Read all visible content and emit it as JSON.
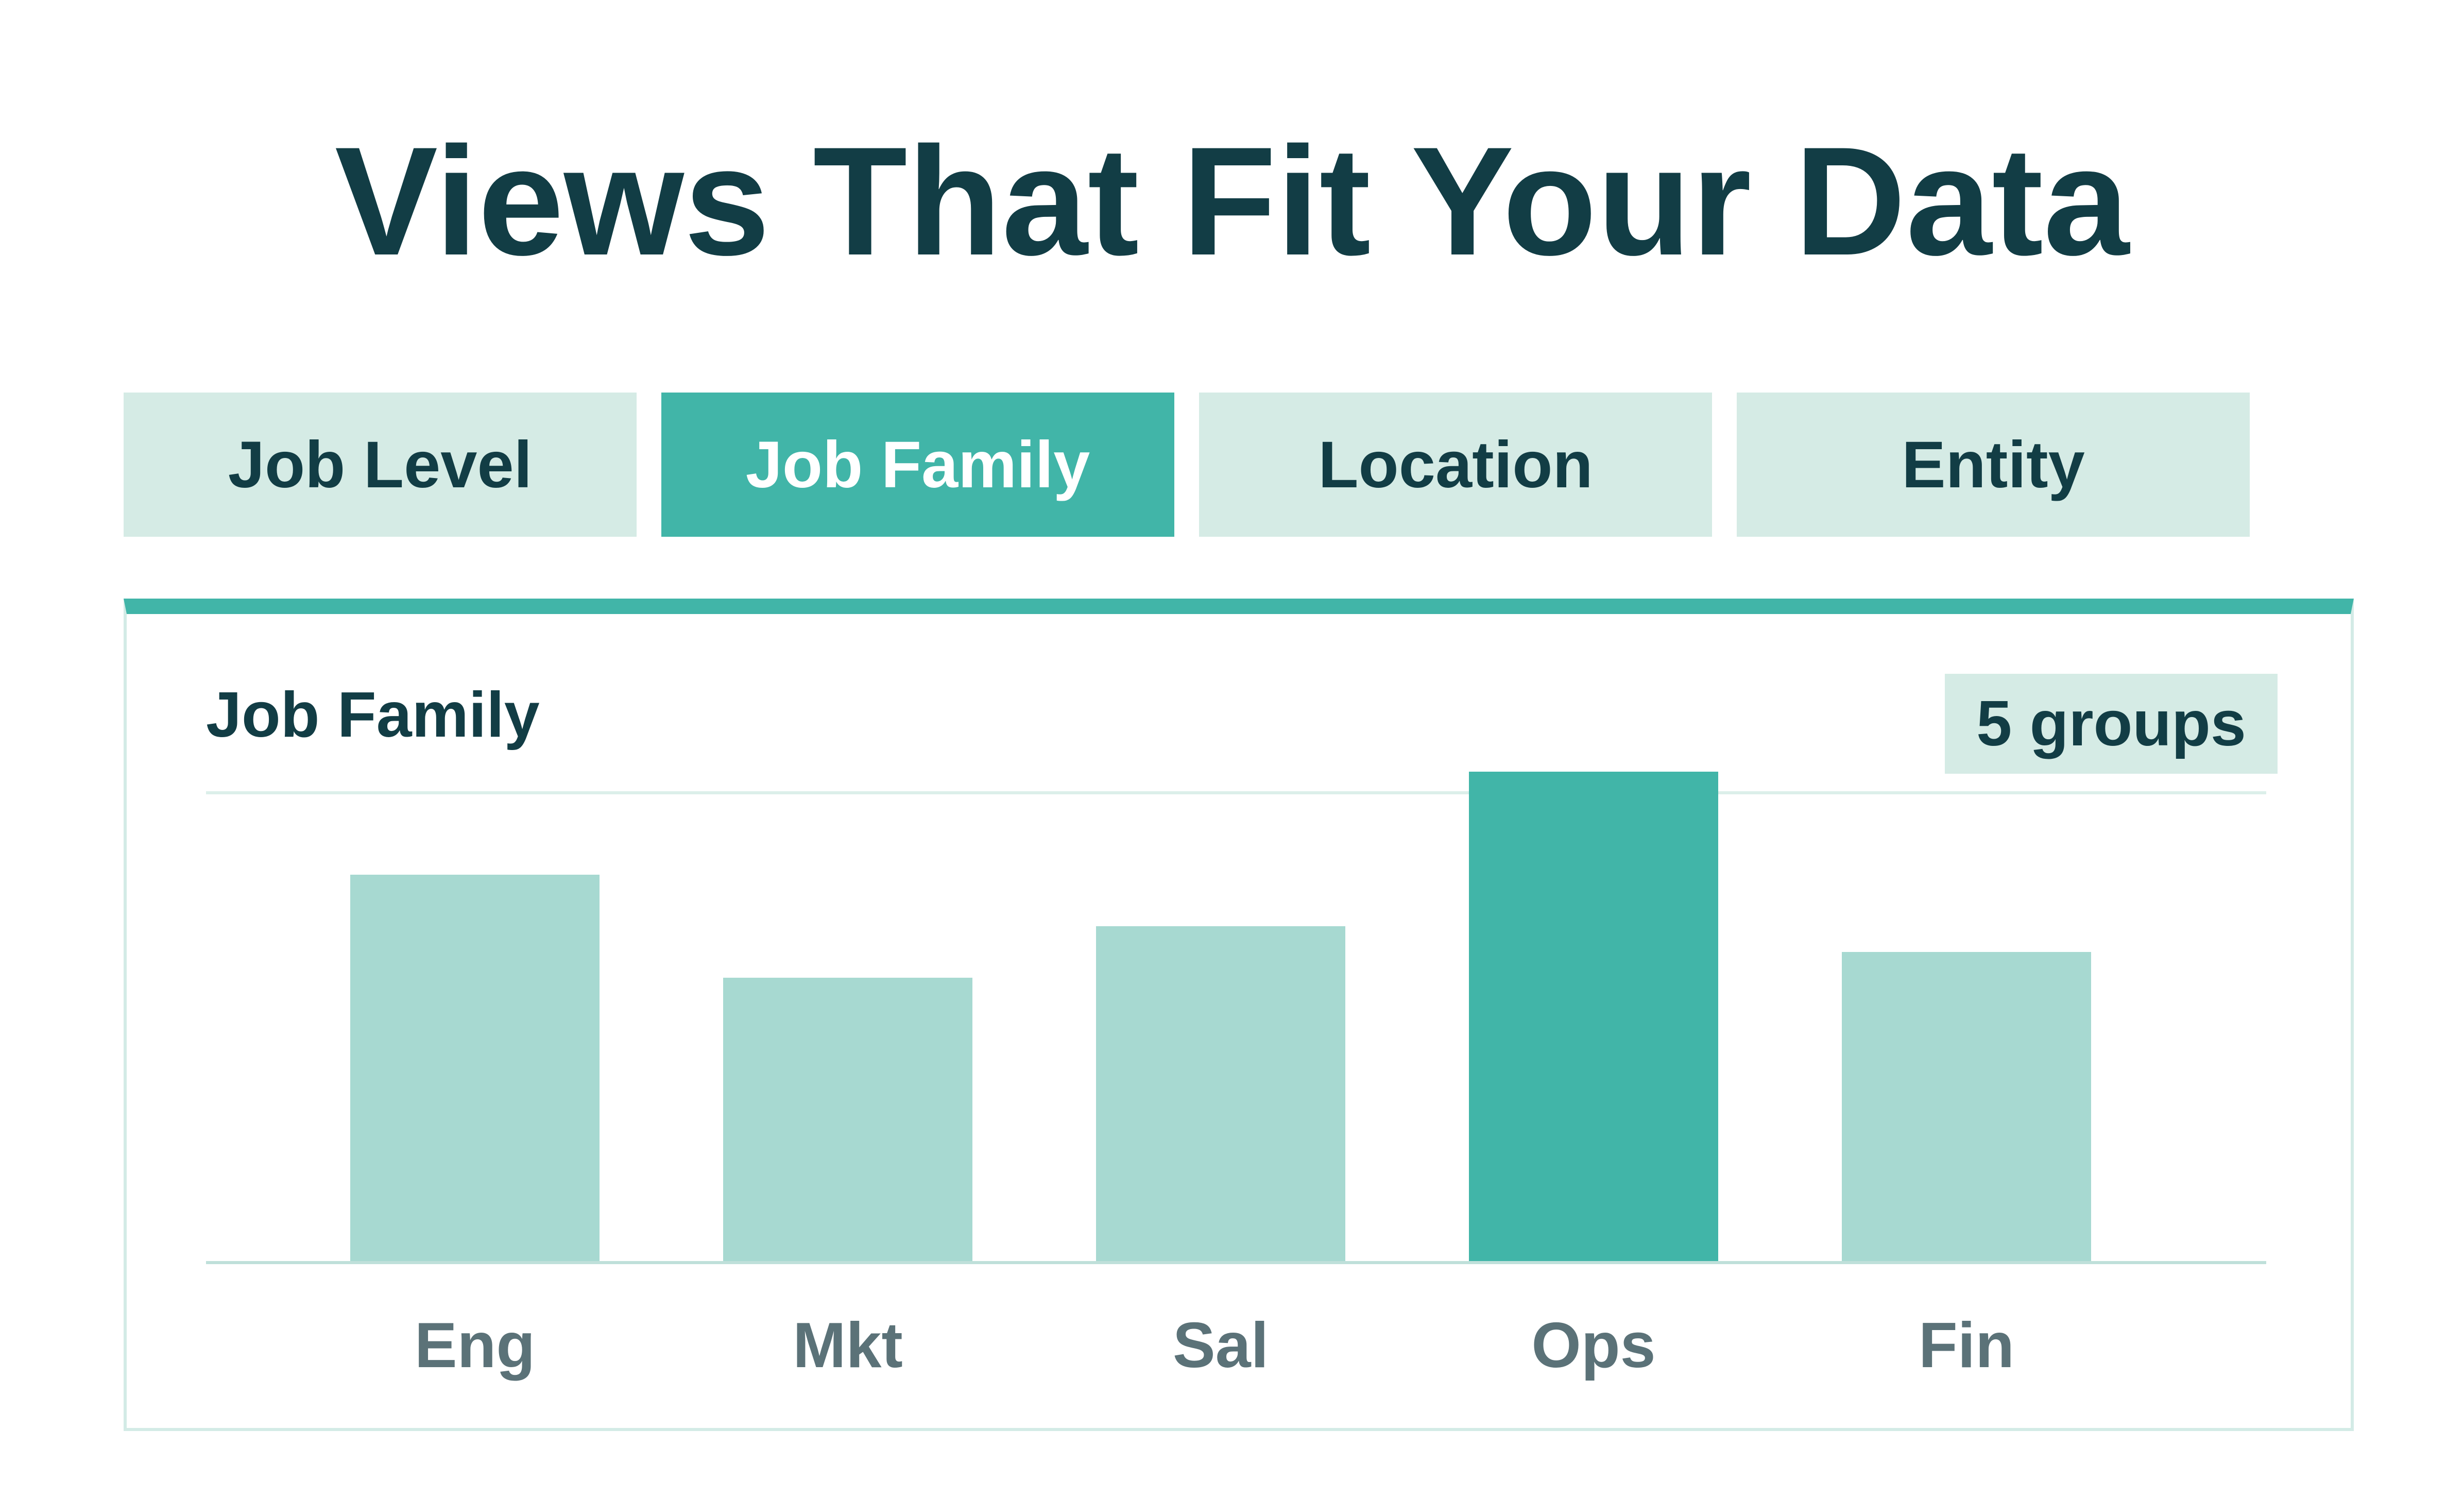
{
  "title": "Views That Fit Your Data",
  "tabs": [
    {
      "label": "Job Level",
      "active": false
    },
    {
      "label": "Job Family",
      "active": true
    },
    {
      "label": "Location",
      "active": false
    },
    {
      "label": "Entity",
      "active": false
    }
  ],
  "panel": {
    "title": "Job Family",
    "badge": "5 groups"
  },
  "colors": {
    "bar": "#a7d9d1",
    "bar_highlight": "#41b5a8",
    "text_dark": "#123d45",
    "text_muted": "#5b7278",
    "tab_bg": "#d5ebe5"
  },
  "chart_data": {
    "type": "bar",
    "categories": [
      "Eng",
      "Mkt",
      "Sal",
      "Ops",
      "Fin"
    ],
    "values": [
      75,
      55,
      65,
      95,
      60
    ],
    "highlight": "Ops",
    "ylim": [
      0,
      100
    ],
    "grid": false,
    "legend": "none"
  }
}
